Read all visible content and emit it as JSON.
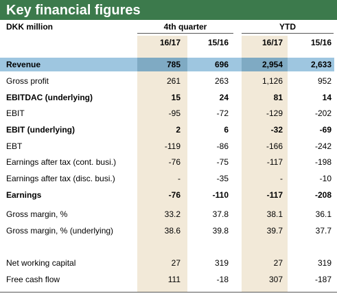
{
  "title": "Key financial figures",
  "unit_label": "DKK million",
  "groups": {
    "quarter": "4th quarter",
    "ytd": "YTD"
  },
  "columns": [
    "16/17",
    "15/16",
    "16/17",
    "15/16"
  ],
  "colors": {
    "title_bg": "#3c7a4c",
    "shade": "#f2e9d8",
    "revenue_highlight": "#9ec6e0"
  },
  "rows": [
    {
      "label": "Revenue",
      "bold": true,
      "values": [
        "785",
        "696",
        "2,954",
        "2,633"
      ]
    },
    {
      "label": "Gross profit",
      "bold": false,
      "values": [
        "261",
        "263",
        "1,126",
        "952"
      ]
    },
    {
      "label": "EBITDAC (underlying)",
      "bold": true,
      "values": [
        "15",
        "24",
        "81",
        "14"
      ]
    },
    {
      "label": "EBIT",
      "bold": false,
      "values": [
        "-95",
        "-72",
        "-129",
        "-202"
      ]
    },
    {
      "label": "EBIT (underlying)",
      "bold": true,
      "values": [
        "2",
        "6",
        "-32",
        "-69"
      ]
    },
    {
      "label": "EBT",
      "bold": false,
      "values": [
        "-119",
        "-86",
        "-166",
        "-242"
      ]
    },
    {
      "label": "Earnings after tax (cont. busi.)",
      "bold": false,
      "values": [
        "-76",
        "-75",
        "-117",
        "-198"
      ]
    },
    {
      "label": "Earnings after tax (disc. busi.)",
      "bold": false,
      "values": [
        "-",
        "-35",
        "-",
        "-10"
      ]
    },
    {
      "label": "Earnings",
      "bold": true,
      "values": [
        "-76",
        "-110",
        "-117",
        "-208"
      ]
    },
    {
      "label": "Gross margin, %",
      "bold": false,
      "values": [
        "33.2",
        "37.8",
        "38.1",
        "36.1"
      ]
    },
    {
      "label": "Gross margin, % (underlying)",
      "bold": false,
      "values": [
        "38.6",
        "39.8",
        "39.7",
        "37.7"
      ]
    },
    {
      "label": "Net working capital",
      "bold": false,
      "values": [
        "27",
        "319",
        "27",
        "319"
      ]
    },
    {
      "label": "Free cash flow",
      "bold": false,
      "values": [
        "111",
        "-18",
        "307",
        "-187"
      ]
    }
  ]
}
